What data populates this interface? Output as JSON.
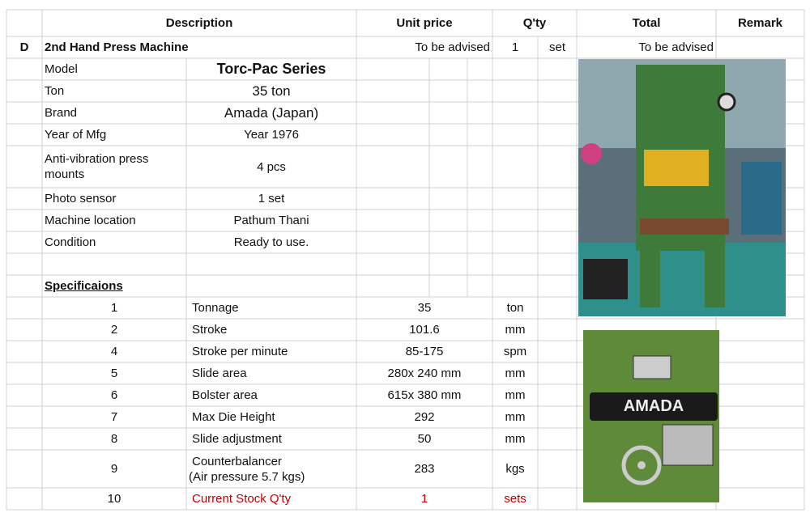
{
  "header": {
    "description": "Description",
    "unit_price": "Unit price",
    "qty": "Q'ty",
    "total": "Total",
    "remark": "Remark"
  },
  "item": {
    "code": "D",
    "name": "2nd Hand Press Machine",
    "unit_price": "To be advised",
    "qty": "1",
    "unit": "set",
    "total": "To be advised"
  },
  "details": [
    {
      "label": "Model",
      "value": "Torc-Pac Series"
    },
    {
      "label": "Ton",
      "value": "35 ton"
    },
    {
      "label": "Brand",
      "value": "Amada (Japan)"
    },
    {
      "label": "Year of Mfg",
      "value": "Year 1976"
    },
    {
      "label": "Anti-vibration press mounts",
      "value": "4 pcs"
    },
    {
      "label": "Photo sensor",
      "value": "1 set"
    },
    {
      "label": "Machine location",
      "value": "Pathum Thani"
    },
    {
      "label": "Condition",
      "value": "Ready to use."
    }
  ],
  "specs_heading": "Specificaions",
  "specs": [
    {
      "no": "1",
      "name": "Tonnage",
      "value": "35",
      "unit": "ton"
    },
    {
      "no": "2",
      "name": "Stroke",
      "value": "101.6",
      "unit": "mm"
    },
    {
      "no": "4",
      "name": "Stroke per minute",
      "value": "85-175",
      "unit": "spm"
    },
    {
      "no": "5",
      "name": "Slide area",
      "value": "280x 240 mm",
      "unit": "mm"
    },
    {
      "no": "6",
      "name": "Bolster area",
      "value": "615x 380 mm",
      "unit": "mm"
    },
    {
      "no": "7",
      "name": "Max Die Height",
      "value": "292",
      "unit": "mm"
    },
    {
      "no": "8",
      "name": "Slide adjustment",
      "value": "50",
      "unit": "mm"
    },
    {
      "no": "9",
      "name": "Counterbalancer",
      "note": "(Air pressure 5.7 kgs)",
      "value": "283",
      "unit": "kgs"
    },
    {
      "no": "10",
      "name": "Current Stock Q'ty",
      "value": "1",
      "unit": "sets"
    }
  ]
}
